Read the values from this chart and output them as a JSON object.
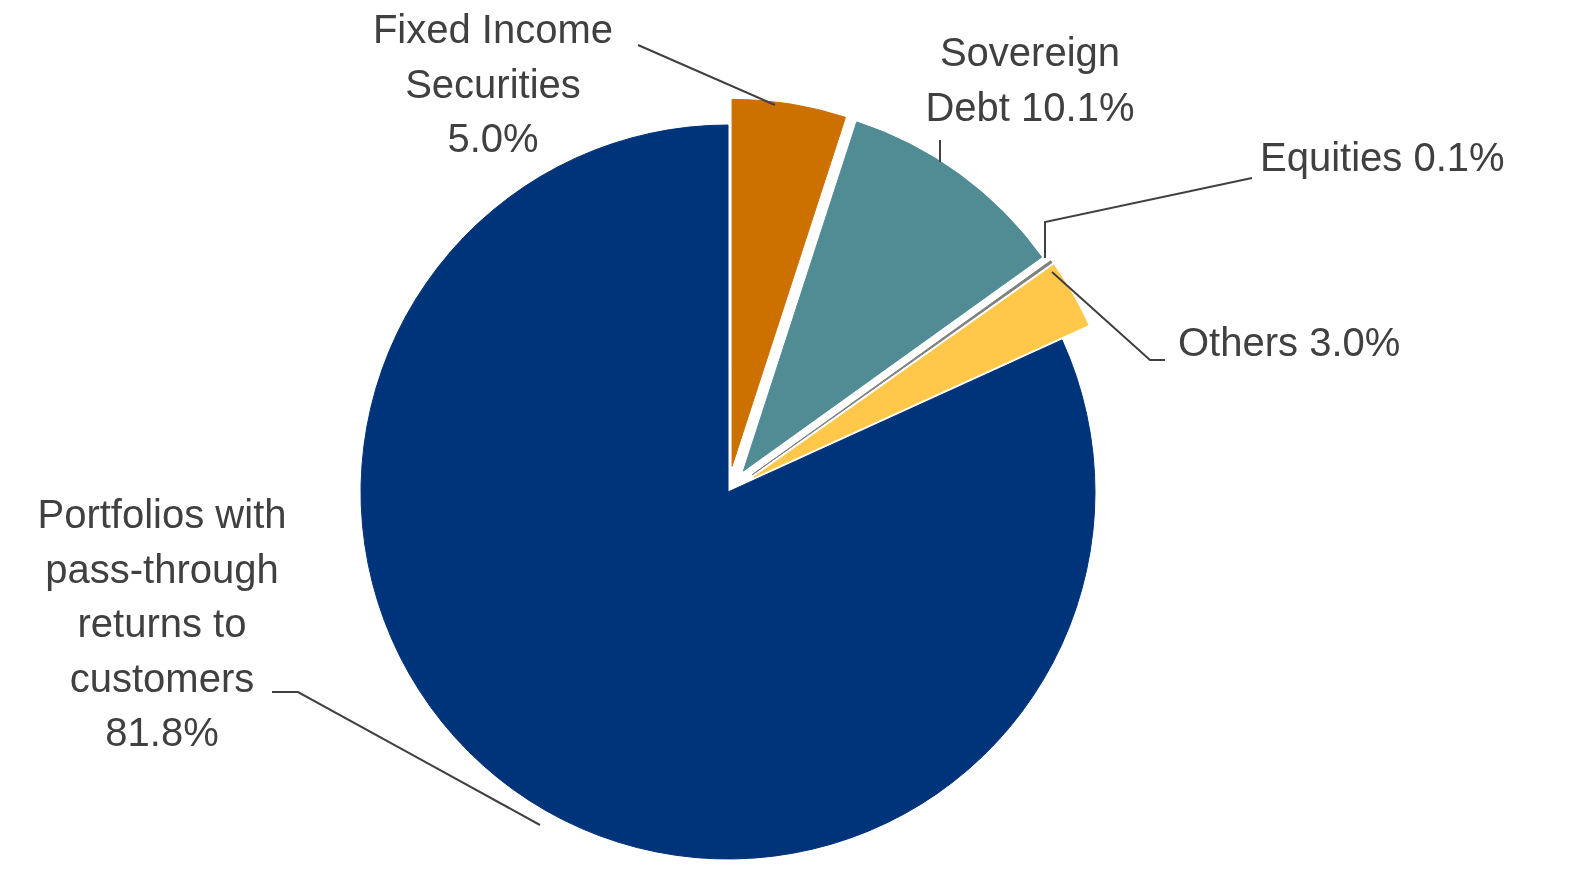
{
  "chart_data": {
    "type": "pie",
    "categories": [
      "Fixed Income\nSecurities",
      "Sovereign\nDebt",
      "Equities",
      "Others",
      "Portfolios with\npass-through\nreturns to\ncustomers"
    ],
    "values": [
      5.0,
      10.1,
      0.1,
      3.0,
      81.8
    ],
    "colors": [
      "#cc7000",
      "#518c94",
      "#7f7f7f",
      "#ffc84a",
      "#00347a"
    ],
    "value_labels": [
      "5.0%",
      "10.1%",
      "0.1%",
      "3.0%",
      "81.8%"
    ]
  }
}
